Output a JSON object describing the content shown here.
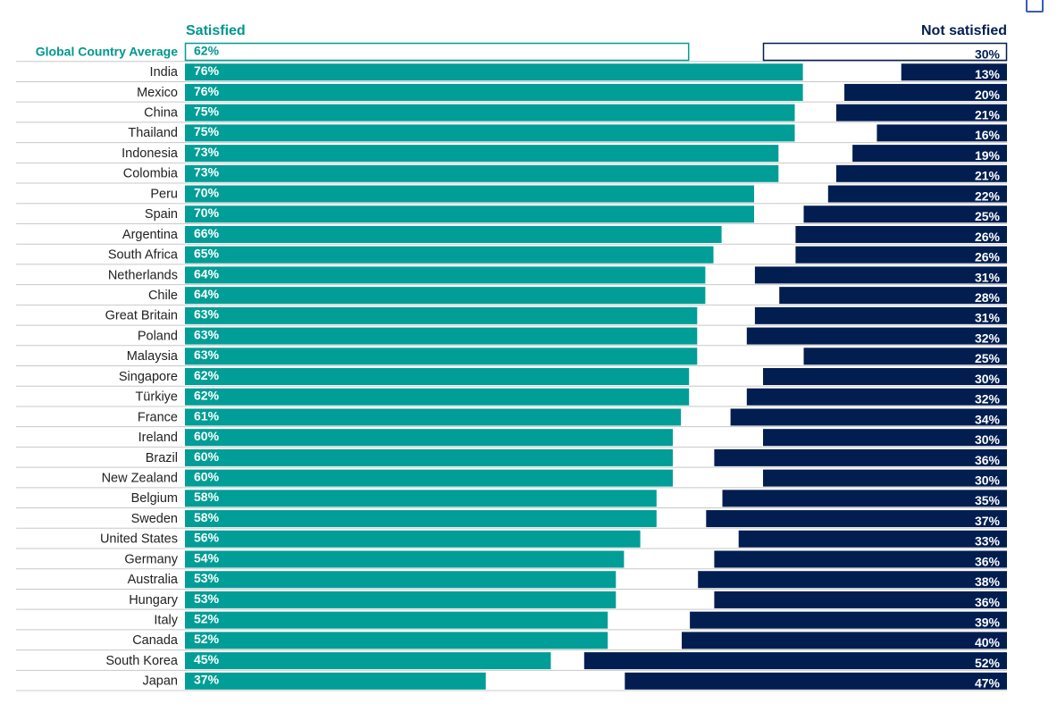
{
  "chart_data": {
    "type": "bar",
    "title": "",
    "legend": {
      "satisfied": "Satisfied",
      "not_satisfied": "Not satisfied"
    },
    "colors": {
      "satisfied": "#009e96",
      "not_satisfied": "#021e50",
      "average_label": "#00968f",
      "text": "#222222",
      "gridline": "#c8c8c8",
      "bar_text": "#ffffff"
    },
    "xlim": [
      0,
      100
    ],
    "average": {
      "label": "Global Country Average",
      "satisfied": 62,
      "not_satisfied": 30
    },
    "categories": [
      "India",
      "Mexico",
      "China",
      "Thailand",
      "Indonesia",
      "Colombia",
      "Peru",
      "Spain",
      "Argentina",
      "South Africa",
      "Netherlands",
      "Chile",
      "Great Britain",
      "Poland",
      "Malaysia",
      "Singapore",
      "Türkiye",
      "France",
      "Ireland",
      "Brazil",
      "New Zealand",
      "Belgium",
      "Sweden",
      "United States",
      "Germany",
      "Australia",
      "Hungary",
      "Italy",
      "Canada",
      "South Korea",
      "Japan"
    ],
    "series": [
      {
        "name": "Satisfied",
        "values": [
          76,
          76,
          75,
          75,
          73,
          73,
          70,
          70,
          66,
          65,
          64,
          64,
          63,
          63,
          63,
          62,
          62,
          61,
          60,
          60,
          60,
          58,
          58,
          56,
          54,
          53,
          53,
          52,
          52,
          45,
          37
        ]
      },
      {
        "name": "Not satisfied",
        "values": [
          13,
          20,
          21,
          16,
          19,
          21,
          22,
          25,
          26,
          26,
          31,
          28,
          31,
          32,
          25,
          30,
          32,
          34,
          30,
          36,
          30,
          35,
          37,
          33,
          36,
          38,
          36,
          39,
          40,
          52,
          47
        ]
      }
    ]
  }
}
